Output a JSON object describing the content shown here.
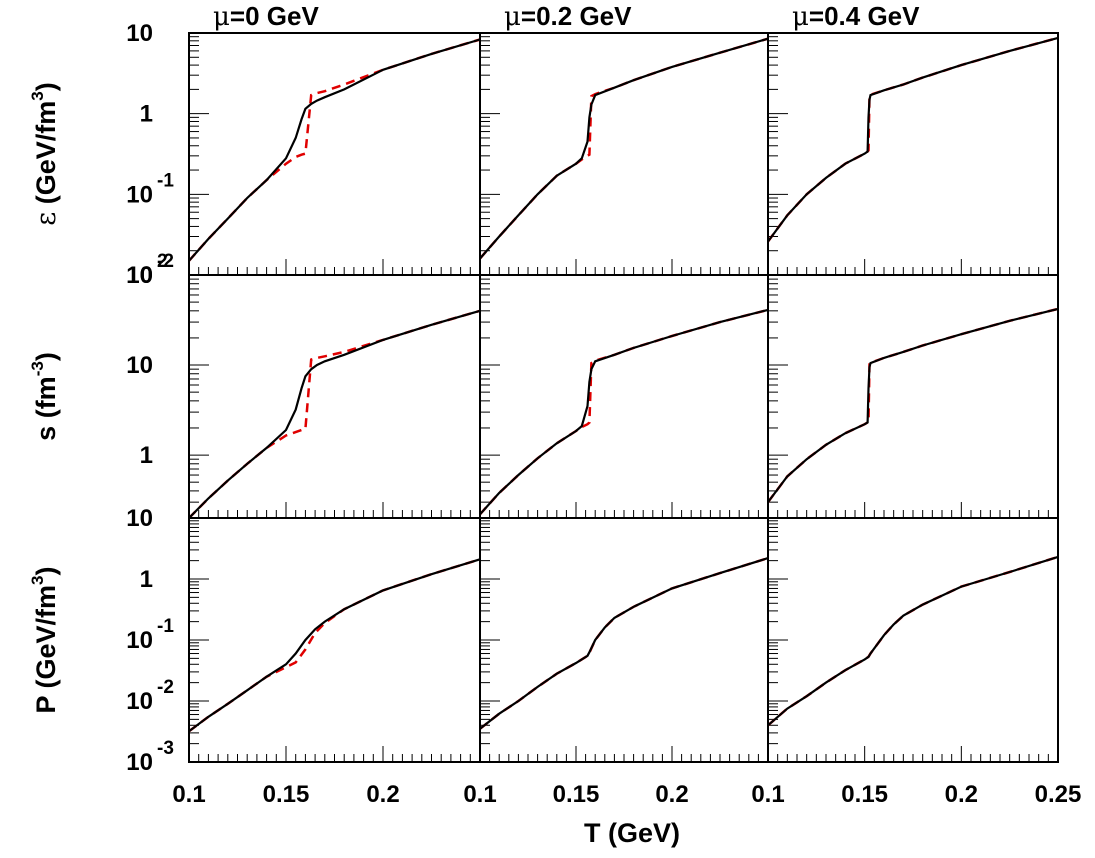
{
  "chart_data": {
    "type": "line",
    "layout": "3x3 grid of panels sharing axes",
    "xlabel": "T (GeV)",
    "x_ticks": [
      "0.1",
      "0.15",
      "0.2",
      "0.1",
      "0.15",
      "0.2",
      "0.1",
      "0.15",
      "0.2",
      "0.25"
    ],
    "xlim": [
      0.1,
      0.25
    ],
    "y_scale": "log",
    "columns": [
      {
        "mu_symbol": "μ",
        "mu_value": "=0 GeV",
        "t_transition": 0.16
      },
      {
        "mu_symbol": "μ",
        "mu_value": "=0.2 GeV",
        "t_transition": 0.157
      },
      {
        "mu_symbol": "μ",
        "mu_value": "=0.4 GeV",
        "t_transition": 0.152
      }
    ],
    "rows": [
      {
        "quantity": "energy density",
        "ylabel_symbol": "ε",
        "ylabel_unit": " (GeV/fm",
        "ylabel_sup": "3",
        "ylabel_close": ")",
        "ylim": [
          0.01,
          10
        ],
        "ytick_labels": [
          {
            "base": "10",
            "exp": ""
          },
          {
            "base": "1",
            "exp": ""
          },
          {
            "base": "10",
            "exp": "-1"
          },
          {
            "base": "10",
            "exp": "-2"
          }
        ],
        "ytick_values": [
          10,
          1,
          0.1,
          0.01
        ],
        "curves": [
          {
            "x": [
              0.1,
              0.11,
              0.12,
              0.13,
              0.14,
              0.15,
              0.155,
              0.158,
              0.16,
              0.163,
              0.166,
              0.17,
              0.18,
              0.2,
              0.225,
              0.25
            ],
            "smooth": [
              0.015,
              0.028,
              0.05,
              0.09,
              0.15,
              0.28,
              0.5,
              0.85,
              1.15,
              1.32,
              1.45,
              1.6,
              2.0,
              3.5,
              5.5,
              8.3
            ],
            "jump": [
              0.015,
              0.028,
              0.05,
              0.09,
              0.15,
              0.24,
              0.29,
              0.31,
              0.32,
              1.7,
              1.8,
              1.9,
              2.3,
              3.5,
              5.5,
              8.3
            ]
          },
          {
            "x": [
              0.1,
              0.11,
              0.12,
              0.13,
              0.14,
              0.15,
              0.153,
              0.156,
              0.157,
              0.158,
              0.16,
              0.17,
              0.18,
              0.2,
              0.225,
              0.25
            ],
            "smooth": [
              0.016,
              0.03,
              0.055,
              0.1,
              0.17,
              0.24,
              0.28,
              0.45,
              0.9,
              1.3,
              1.7,
              2.1,
              2.6,
              3.8,
              5.7,
              8.5
            ],
            "jump": [
              0.016,
              0.03,
              0.055,
              0.1,
              0.17,
              0.24,
              0.27,
              0.3,
              0.31,
              1.65,
              1.75,
              2.1,
              2.6,
              3.8,
              5.7,
              8.5
            ]
          },
          {
            "x": [
              0.1,
              0.11,
              0.12,
              0.13,
              0.14,
              0.15,
              0.1515,
              0.152,
              0.1525,
              0.153,
              0.16,
              0.17,
              0.18,
              0.2,
              0.225,
              0.25
            ],
            "smooth": [
              0.026,
              0.055,
              0.1,
              0.16,
              0.24,
              0.32,
              0.34,
              0.9,
              1.5,
              1.7,
              1.95,
              2.3,
              2.8,
              4.0,
              6.0,
              8.7
            ],
            "jump": [
              0.026,
              0.055,
              0.1,
              0.16,
              0.24,
              0.32,
              0.34,
              0.35,
              1.7,
              1.72,
              1.95,
              2.3,
              2.8,
              4.0,
              6.0,
              8.7
            ]
          }
        ]
      },
      {
        "quantity": "entropy density",
        "ylabel_symbol": "s",
        "ylabel_unit": " (fm",
        "ylabel_sup": "-3",
        "ylabel_close": ")",
        "ylim": [
          0.2,
          100
        ],
        "ytick_labels": [
          {
            "base": "10",
            "exp": "2"
          },
          {
            "base": "10",
            "exp": ""
          },
          {
            "base": "1",
            "exp": ""
          }
        ],
        "ytick_values": [
          100,
          10,
          1
        ],
        "curves": [
          {
            "x": [
              0.1,
              0.11,
              0.12,
              0.13,
              0.14,
              0.15,
              0.155,
              0.158,
              0.16,
              0.163,
              0.166,
              0.17,
              0.18,
              0.2,
              0.225,
              0.25
            ],
            "smooth": [
              0.2,
              0.33,
              0.52,
              0.8,
              1.2,
              1.9,
              3.2,
              5.5,
              7.5,
              9.0,
              10.0,
              11.0,
              13.0,
              19.0,
              28.0,
              40.0
            ],
            "jump": [
              0.2,
              0.33,
              0.52,
              0.8,
              1.2,
              1.65,
              1.8,
              1.9,
              1.95,
              11.5,
              12.0,
              12.5,
              14.0,
              19.0,
              28.0,
              40.0
            ]
          },
          {
            "x": [
              0.1,
              0.11,
              0.12,
              0.13,
              0.14,
              0.15,
              0.153,
              0.156,
              0.157,
              0.158,
              0.16,
              0.17,
              0.18,
              0.2,
              0.225,
              0.25
            ],
            "smooth": [
              0.22,
              0.38,
              0.6,
              0.92,
              1.35,
              1.85,
              2.1,
              3.5,
              6.5,
              9.0,
              11.0,
              13.0,
              15.5,
              21.0,
              30.0,
              41.0
            ],
            "jump": [
              0.22,
              0.38,
              0.6,
              0.92,
              1.35,
              1.85,
              2.05,
              2.2,
              2.3,
              10.5,
              11.2,
              13.0,
              15.5,
              21.0,
              30.0,
              41.0
            ]
          },
          {
            "x": [
              0.1,
              0.11,
              0.12,
              0.13,
              0.14,
              0.15,
              0.1515,
              0.152,
              0.1525,
              0.153,
              0.16,
              0.17,
              0.18,
              0.2,
              0.225,
              0.25
            ],
            "smooth": [
              0.3,
              0.58,
              0.9,
              1.3,
              1.75,
              2.2,
              2.3,
              5.5,
              9.5,
              10.5,
              12.0,
              14.0,
              16.5,
              22.0,
              31.0,
              42.0
            ],
            "jump": [
              0.3,
              0.58,
              0.9,
              1.3,
              1.75,
              2.2,
              2.3,
              2.35,
              10.5,
              10.6,
              12.0,
              14.0,
              16.5,
              22.0,
              31.0,
              42.0
            ]
          }
        ]
      },
      {
        "quantity": "pressure",
        "ylabel_symbol": "P",
        "ylabel_unit": " (GeV/fm",
        "ylabel_sup": "3",
        "ylabel_close": ")",
        "ylim": [
          0.001,
          10
        ],
        "ytick_labels": [
          {
            "base": "10",
            "exp": ""
          },
          {
            "base": "1",
            "exp": ""
          },
          {
            "base": "10",
            "exp": "-1"
          },
          {
            "base": "10",
            "exp": "-2"
          },
          {
            "base": "10",
            "exp": "-3"
          }
        ],
        "ytick_values": [
          10,
          1,
          0.1,
          0.01,
          0.001
        ],
        "curves": [
          {
            "x": [
              0.1,
              0.11,
              0.12,
              0.13,
              0.14,
              0.15,
              0.155,
              0.16,
              0.165,
              0.17,
              0.18,
              0.2,
              0.225,
              0.25
            ],
            "smooth": [
              0.0032,
              0.0055,
              0.009,
              0.015,
              0.025,
              0.04,
              0.06,
              0.1,
              0.15,
              0.2,
              0.32,
              0.65,
              1.2,
              2.1
            ],
            "jump": [
              0.0032,
              0.0055,
              0.009,
              0.015,
              0.025,
              0.036,
              0.043,
              0.07,
              0.13,
              0.19,
              0.32,
              0.65,
              1.2,
              2.1
            ]
          },
          {
            "x": [
              0.1,
              0.11,
              0.12,
              0.13,
              0.14,
              0.15,
              0.156,
              0.157,
              0.16,
              0.165,
              0.17,
              0.18,
              0.2,
              0.225,
              0.25
            ],
            "smooth": [
              0.0035,
              0.0062,
              0.01,
              0.017,
              0.028,
              0.042,
              0.055,
              0.063,
              0.1,
              0.16,
              0.23,
              0.35,
              0.7,
              1.25,
              2.2
            ],
            "jump": [
              0.0035,
              0.0062,
              0.01,
              0.017,
              0.028,
              0.042,
              0.055,
              0.062,
              0.1,
              0.16,
              0.23,
              0.35,
              0.7,
              1.25,
              2.2
            ]
          },
          {
            "x": [
              0.1,
              0.11,
              0.12,
              0.13,
              0.14,
              0.15,
              0.152,
              0.153,
              0.16,
              0.165,
              0.17,
              0.18,
              0.2,
              0.225,
              0.25
            ],
            "smooth": [
              0.004,
              0.0075,
              0.012,
              0.02,
              0.032,
              0.048,
              0.053,
              0.06,
              0.12,
              0.18,
              0.25,
              0.38,
              0.75,
              1.3,
              2.3
            ],
            "jump": [
              0.004,
              0.0075,
              0.012,
              0.02,
              0.032,
              0.048,
              0.053,
              0.06,
              0.12,
              0.18,
              0.25,
              0.38,
              0.75,
              1.3,
              2.3
            ]
          }
        ]
      }
    ],
    "series_styles": {
      "smooth": {
        "color": "#000000",
        "dash": "solid"
      },
      "jump": {
        "color": "#e00000",
        "dash": "dashed"
      }
    },
    "grid": false
  }
}
